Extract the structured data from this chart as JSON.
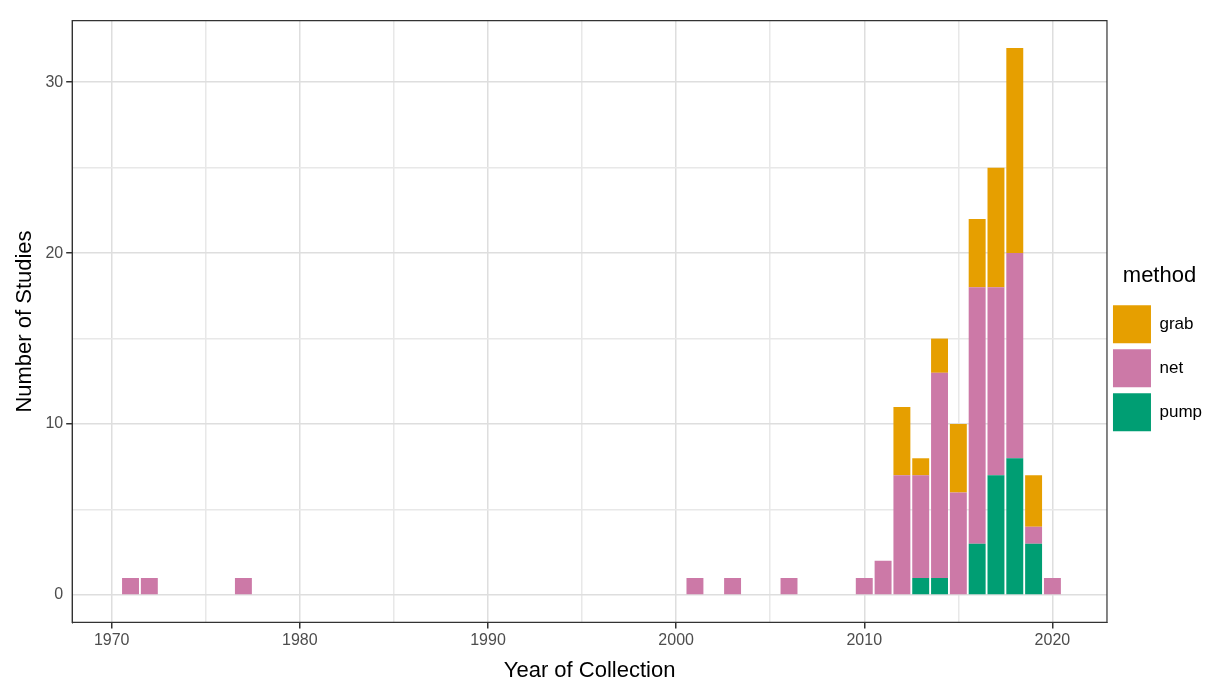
{
  "chart_data": {
    "type": "bar",
    "stacked": true,
    "xlabel": "Year of Collection",
    "ylabel": "Number of Studies",
    "legend_title": "method",
    "legend": "right",
    "x": [
      1971,
      1972,
      1977,
      2001,
      2003,
      2006,
      2010,
      2011,
      2012,
      2013,
      2014,
      2015,
      2016,
      2017,
      2018,
      2019,
      2020
    ],
    "series": [
      {
        "name": "pump",
        "color": "#009e73",
        "values": [
          null,
          null,
          null,
          null,
          null,
          null,
          null,
          null,
          null,
          1,
          1,
          null,
          3,
          7,
          8,
          3,
          null
        ]
      },
      {
        "name": "net",
        "color": "#cc79a7",
        "values": [
          1,
          1,
          1,
          1,
          1,
          1,
          1,
          2,
          7,
          6,
          12,
          6,
          15,
          11,
          12,
          1,
          1
        ]
      },
      {
        "name": "grab",
        "color": "#e69f00",
        "values": [
          null,
          null,
          null,
          null,
          null,
          null,
          null,
          null,
          4,
          1,
          2,
          4,
          4,
          7,
          12,
          3,
          null
        ]
      }
    ],
    "xlim": [
      1967.9,
      2022.9
    ],
    "xticks": [
      1970,
      {
        "value": 1975,
        "label": null
      },
      1980,
      {
        "value": 1985,
        "label": null
      },
      1990,
      {
        "value": 1995,
        "label": null
      },
      2000,
      {
        "value": 2005,
        "label": null
      },
      2010,
      {
        "value": 2015,
        "label": null
      },
      2020
    ],
    "ylim": [
      -1.6,
      33.6
    ],
    "yticks": [
      0,
      {
        "value": 5,
        "label": null
      },
      10,
      {
        "value": 15,
        "label": null
      },
      20,
      {
        "value": 25,
        "label": null
      },
      30
    ],
    "grid": true
  }
}
